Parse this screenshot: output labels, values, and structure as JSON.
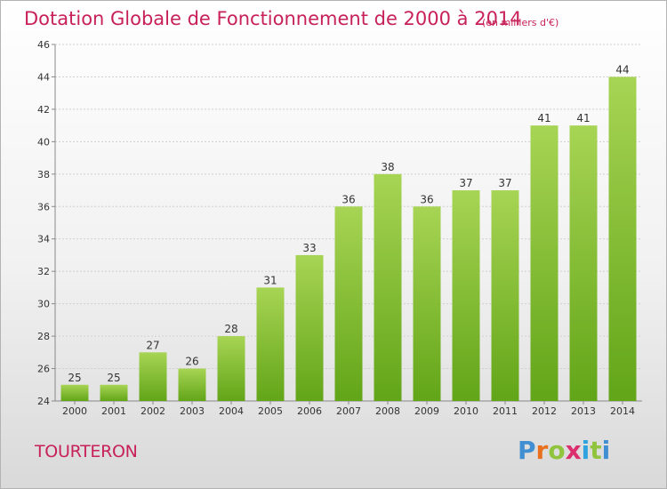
{
  "header": {
    "title": "Dotation Globale de Fonctionnement de 2000 à 2014",
    "subtitle": "(en milliers d'€)"
  },
  "footer": {
    "commune": "TOURTERON",
    "logo_text": "Proxiti"
  },
  "colors": {
    "title": "#c8215a",
    "bar_top": "#a7d454",
    "bar_bottom": "#62a518",
    "logo": [
      "#3f8fd2",
      "#e8701f",
      "#8fc43c",
      "#dc2f6e",
      "#2fa3dd"
    ]
  },
  "chart_data": {
    "type": "bar",
    "title": "Dotation Globale de Fonctionnement de 2000 à 2014",
    "subtitle": "(en milliers d'€)",
    "categories": [
      "2000",
      "2001",
      "2002",
      "2003",
      "2004",
      "2005",
      "2006",
      "2007",
      "2008",
      "2009",
      "2010",
      "2011",
      "2012",
      "2013",
      "2014"
    ],
    "values": [
      25,
      25,
      27,
      26,
      28,
      31,
      33,
      36,
      38,
      36,
      37,
      37,
      41,
      41,
      44
    ],
    "ylim": [
      24,
      46
    ],
    "yticks": [
      24,
      26,
      28,
      30,
      32,
      34,
      36,
      38,
      40,
      42,
      44,
      46
    ],
    "grid": "horizontal dashed",
    "data_labels": true
  }
}
